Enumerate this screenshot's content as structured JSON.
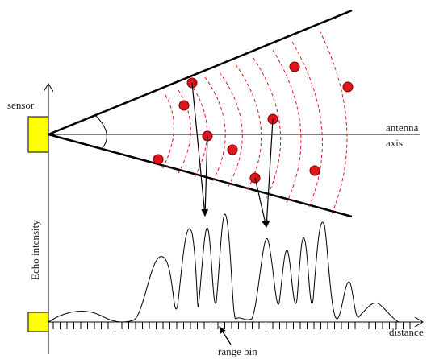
{
  "labels": {
    "sensor": "sensor",
    "antenna_line1": "antenna",
    "antenna_line2": "axis",
    "echo_intensity": "Echo intensity",
    "distance": "distance",
    "range_bin": "range bin"
  },
  "colors": {
    "sensor_fill": "#ffff00",
    "target_fill": "#e0141c",
    "wavefront": "#e0141c",
    "line": "#000000"
  }
}
